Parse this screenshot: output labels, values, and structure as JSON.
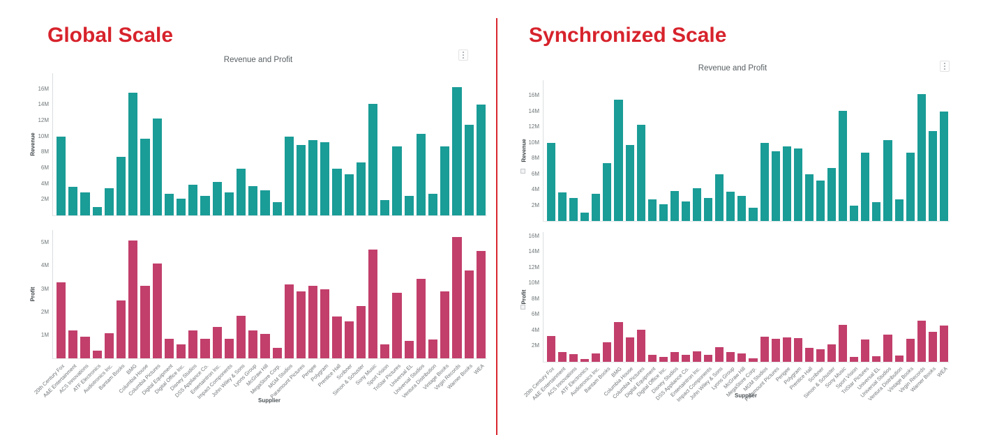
{
  "page": {
    "heading_color": "#d7232c",
    "divider_color": "#d8262e"
  },
  "icons": {
    "menu": "kebab-menu-icon",
    "sync": "scale-sync-icon"
  },
  "chart_data": {
    "type": "bar",
    "xlabel": "Supplier",
    "categories": [
      "20th Century Fox",
      "A&E Entertainment",
      "ACS Innovations",
      "ATF Electronics",
      "Audiotronics Inc.",
      "Bantam Books",
      "BMG",
      "Columbia House",
      "Columbia Pictures",
      "Digital Equipment",
      "Digital Office Inc.",
      "Disney Studios",
      "DSS Appliance Co.",
      "Entertaintron Inc.",
      "Impact Components",
      "John Wiley & Sons",
      "Lyons Group",
      "McGraw Hill",
      "MegaStore Corp.",
      "MGM Studios",
      "Paramount Pictures",
      "Perigee",
      "Polygram",
      "Prentice Hall",
      "Scribner",
      "Simon & Schuster",
      "Sony Music",
      "Sport Vision",
      "TriStar Pictures",
      "Universal EL",
      "Universal Studios",
      "Ventura Distribution",
      "Vintage Books",
      "Virgin Records",
      "Warner Books",
      "WEA"
    ],
    "series": [
      {
        "name": "Revenue",
        "color": "#1a9c97",
        "values": [
          10.0,
          3.65,
          2.9,
          1.05,
          3.45,
          7.4,
          15.55,
          9.7,
          12.3,
          2.75,
          2.15,
          3.85,
          2.5,
          4.2,
          2.9,
          5.95,
          3.7,
          3.2,
          1.65,
          9.95,
          8.9,
          9.5,
          9.3,
          5.95,
          5.2,
          6.75,
          14.1,
          1.95,
          8.7,
          2.45,
          10.35,
          2.75,
          8.75,
          16.25,
          11.5,
          14.0
        ]
      },
      {
        "name": "Profit",
        "color": "#c23f6b",
        "values": [
          3.3,
          1.2,
          0.95,
          0.33,
          1.1,
          2.5,
          5.1,
          3.15,
          4.1,
          0.85,
          0.6,
          1.2,
          0.85,
          1.35,
          0.85,
          1.85,
          1.2,
          1.05,
          0.45,
          3.2,
          2.9,
          3.15,
          3.0,
          1.8,
          1.6,
          2.25,
          4.7,
          0.6,
          2.85,
          0.75,
          3.45,
          0.8,
          2.9,
          5.25,
          3.8,
          4.65
        ]
      }
    ],
    "panels": [
      {
        "heading": "Global Scale",
        "title": "Revenue and Profit",
        "charts": [
          {
            "series": "Revenue",
            "ylabel": "Revenue",
            "ylim": [
              0,
              18.0
            ],
            "yticks": [
              2,
              4,
              6,
              8,
              10,
              12,
              14,
              16
            ],
            "tick_suffix": "M",
            "grid": false
          },
          {
            "series": "Profit",
            "ylabel": "Profit",
            "ylim": [
              0,
              5.55
            ],
            "yticks": [
              1,
              2,
              3,
              4,
              5
            ],
            "tick_suffix": "M",
            "grid": false
          }
        ]
      },
      {
        "heading": "Synchronized Scale",
        "title": "Revenue and Profit",
        "charts": [
          {
            "series": "Revenue",
            "ylabel": "Revenue",
            "ylim": [
              0,
              18.0
            ],
            "yticks": [
              2,
              4,
              6,
              8,
              10,
              12,
              14,
              16
            ],
            "tick_suffix": "M",
            "grid": false
          },
          {
            "series": "Profit",
            "ylabel": "Profit",
            "ylim": [
              0,
              16.5
            ],
            "yticks": [
              2,
              4,
              6,
              8,
              10,
              12,
              14,
              16
            ],
            "tick_suffix": "M",
            "grid": false
          }
        ]
      }
    ]
  }
}
